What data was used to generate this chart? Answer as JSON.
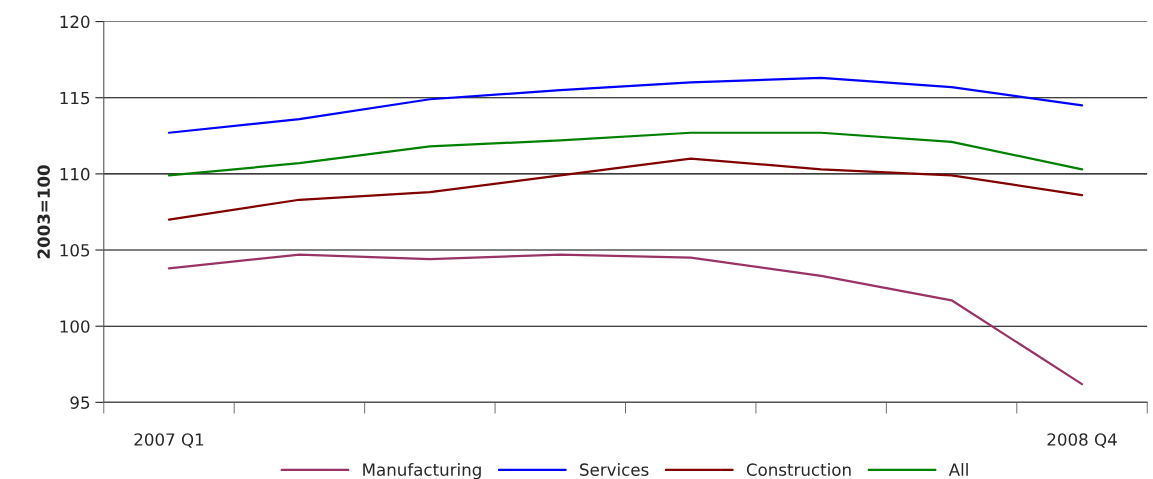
{
  "chart_data": {
    "type": "line",
    "ylabel": "2003=100",
    "categories": [
      "2007 Q1",
      null,
      null,
      null,
      null,
      null,
      null,
      "2008 Q4"
    ],
    "series": [
      {
        "name": "Manufacturing",
        "color": "#993366",
        "values": [
          103.8,
          104.7,
          104.4,
          104.7,
          104.5,
          103.3,
          101.7,
          96.2
        ]
      },
      {
        "name": "Services",
        "color": "#0000ff",
        "values": [
          112.7,
          113.6,
          114.9,
          115.5,
          116.0,
          116.3,
          115.7,
          114.5
        ]
      },
      {
        "name": "Construction",
        "color": "#800000",
        "values": [
          107.0,
          108.3,
          108.8,
          109.9,
          111.0,
          110.3,
          109.9,
          108.6
        ]
      },
      {
        "name": "All",
        "color": "#008000",
        "values": [
          109.9,
          110.7,
          111.8,
          112.2,
          112.7,
          112.7,
          112.1,
          110.3
        ]
      }
    ],
    "ylim": [
      95,
      120
    ],
    "yticks": [
      95,
      100,
      105,
      110,
      115,
      120
    ],
    "grid": "y",
    "legend": "bottom",
    "line_style": "solid",
    "marker": "none"
  }
}
